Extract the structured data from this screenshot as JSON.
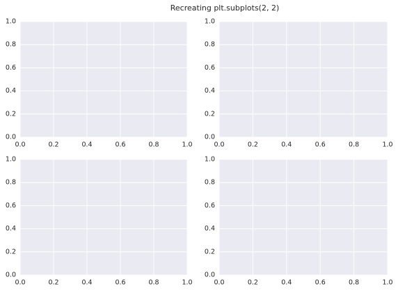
{
  "title": "Recreating plt.subplots(2, 2)",
  "chart_data": [
    {
      "type": "line",
      "series": [],
      "xlim": [
        0,
        1
      ],
      "ylim": [
        0,
        1
      ],
      "grid": true,
      "background": "#eaeaf2",
      "grid_color": "#ffffff",
      "xticks": [
        {
          "value": 0,
          "label": "0.0"
        },
        0.2,
        0.4,
        0.6,
        0.8,
        {
          "value": 1,
          "label": "1.0"
        }
      ],
      "yticks": [
        {
          "value": 0,
          "label": "0.0"
        },
        0.2,
        0.4,
        0.6,
        0.8,
        {
          "value": 1,
          "label": "1.0"
        }
      ]
    },
    {
      "type": "line",
      "series": [],
      "xlim": [
        0,
        1
      ],
      "ylim": [
        0,
        1
      ],
      "grid": true,
      "background": "#eaeaf2",
      "grid_color": "#ffffff",
      "xticks": [
        {
          "value": 0,
          "label": "0.0"
        },
        0.2,
        0.4,
        0.6,
        0.8,
        {
          "value": 1,
          "label": "1.0"
        }
      ],
      "yticks": [
        {
          "value": 0,
          "label": "0.0"
        },
        0.2,
        0.4,
        0.6,
        0.8,
        {
          "value": 1,
          "label": "1.0"
        }
      ]
    },
    {
      "type": "line",
      "series": [],
      "xlim": [
        0,
        1
      ],
      "ylim": [
        0,
        1
      ],
      "grid": true,
      "background": "#eaeaf2",
      "grid_color": "#ffffff",
      "xticks": [
        {
          "value": 0,
          "label": "0.0"
        },
        0.2,
        0.4,
        0.6,
        0.8,
        {
          "value": 1,
          "label": "1.0"
        }
      ],
      "yticks": [
        {
          "value": 0,
          "label": "0.0"
        },
        0.2,
        0.4,
        0.6,
        0.8,
        {
          "value": 1,
          "label": "1.0"
        }
      ]
    },
    {
      "type": "line",
      "series": [],
      "xlim": [
        0,
        1
      ],
      "ylim": [
        0,
        1
      ],
      "grid": true,
      "background": "#eaeaf2",
      "grid_color": "#ffffff",
      "xticks": [
        {
          "value": 0,
          "label": "0.0"
        },
        0.2,
        0.4,
        0.6,
        0.8,
        {
          "value": 1,
          "label": "1.0"
        }
      ],
      "yticks": [
        {
          "value": 0,
          "label": "0.0"
        },
        0.2,
        0.4,
        0.6,
        0.8,
        {
          "value": 1,
          "label": "1.0"
        }
      ]
    }
  ]
}
